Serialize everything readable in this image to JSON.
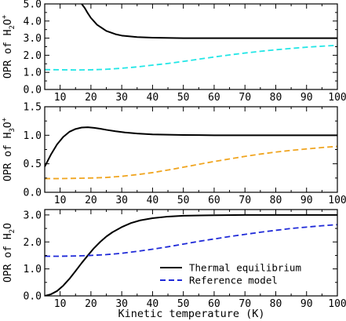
{
  "chart_data": [
    {
      "type": "line",
      "ylabel_main": "OPR of H",
      "ylabel_sub": "2",
      "ylabel_after": "O",
      "ylabel_sup": "+",
      "xlim": [
        5,
        100
      ],
      "ylim": [
        0,
        5
      ],
      "xticks": [
        10,
        20,
        30,
        40,
        50,
        60,
        70,
        80,
        90,
        100
      ],
      "yticks": [
        "0.0",
        "1.0",
        "2.0",
        "3.0",
        "4.0",
        "5.0"
      ],
      "series": [
        {
          "key": "thermal",
          "color": "#000000",
          "dash": "solid",
          "x": [
            17,
            18,
            19,
            20,
            22,
            25,
            28,
            30,
            35,
            40,
            50,
            60,
            70,
            80,
            90,
            100
          ],
          "y": [
            5.0,
            4.76,
            4.45,
            4.18,
            3.78,
            3.42,
            3.23,
            3.15,
            3.06,
            3.03,
            3.0,
            3.0,
            3.0,
            3.0,
            3.0,
            3.0
          ]
        },
        {
          "key": "reference",
          "color": "#22e6e6",
          "dash": "dashed",
          "x": [
            5,
            10,
            15,
            20,
            25,
            30,
            35,
            40,
            45,
            50,
            55,
            60,
            65,
            70,
            75,
            80,
            85,
            90,
            95,
            100
          ],
          "y": [
            1.16,
            1.15,
            1.14,
            1.15,
            1.18,
            1.24,
            1.32,
            1.42,
            1.52,
            1.64,
            1.77,
            1.9,
            2.02,
            2.13,
            2.23,
            2.32,
            2.4,
            2.47,
            2.53,
            2.58
          ]
        }
      ]
    },
    {
      "type": "line",
      "ylabel_main": "OPR of H",
      "ylabel_sub": "3",
      "ylabel_after": "O",
      "ylabel_sup": "+",
      "xlim": [
        5,
        100
      ],
      "ylim": [
        0,
        1.5
      ],
      "xticks": [
        10,
        20,
        30,
        40,
        50,
        60,
        70,
        80,
        90,
        100
      ],
      "yticks": [
        "0.0",
        "0.5",
        "1.0",
        "1.5"
      ],
      "series": [
        {
          "key": "thermal",
          "color": "#000000",
          "dash": "solid",
          "x": [
            5,
            7,
            9,
            11,
            13,
            15,
            17,
            19,
            21,
            23,
            25,
            28,
            31,
            35,
            40,
            50,
            60,
            70,
            80,
            90,
            100
          ],
          "y": [
            0.45,
            0.66,
            0.84,
            0.97,
            1.06,
            1.11,
            1.135,
            1.14,
            1.13,
            1.115,
            1.095,
            1.07,
            1.05,
            1.03,
            1.015,
            1.005,
            1.0,
            1.0,
            1.0,
            1.0,
            1.0
          ]
        },
        {
          "key": "reference",
          "color": "#f0a520",
          "dash": "dashed",
          "x": [
            5,
            10,
            15,
            20,
            25,
            30,
            35,
            40,
            45,
            50,
            55,
            60,
            65,
            70,
            75,
            80,
            85,
            90,
            95,
            100
          ],
          "y": [
            0.24,
            0.24,
            0.245,
            0.25,
            0.26,
            0.28,
            0.31,
            0.345,
            0.39,
            0.44,
            0.49,
            0.54,
            0.585,
            0.63,
            0.67,
            0.705,
            0.735,
            0.76,
            0.785,
            0.805
          ]
        }
      ]
    },
    {
      "type": "line",
      "ylabel_main": "OPR of H",
      "ylabel_sub": "2",
      "ylabel_after": "O",
      "ylabel_sup": "",
      "xlabel": "Kinetic temperature (K)",
      "xlim": [
        5,
        100
      ],
      "ylim": [
        0,
        3.2
      ],
      "xticks": [
        10,
        20,
        30,
        40,
        50,
        60,
        70,
        80,
        90,
        100
      ],
      "yticks": [
        "0.0",
        "1.0",
        "2.0",
        "3.0"
      ],
      "legend": {
        "position": "lower-right",
        "entries": [
          {
            "key": "thermal",
            "label": "Thermal equilibrium",
            "color": "#000000",
            "dash": "solid"
          },
          {
            "key": "reference",
            "label": "Reference model",
            "color": "#1f2ad8",
            "dash": "dashed"
          }
        ]
      },
      "series": [
        {
          "key": "thermal",
          "color": "#000000",
          "dash": "solid",
          "x": [
            5,
            7,
            9,
            11,
            13,
            15,
            17,
            19,
            21,
            23,
            25,
            27,
            30,
            33,
            36,
            40,
            45,
            50,
            60,
            70,
            80,
            90,
            100
          ],
          "y": [
            0.0,
            0.06,
            0.18,
            0.38,
            0.63,
            0.92,
            1.22,
            1.5,
            1.77,
            2.0,
            2.2,
            2.36,
            2.55,
            2.7,
            2.8,
            2.88,
            2.94,
            2.97,
            2.99,
            3.0,
            3.0,
            3.0,
            3.0
          ]
        },
        {
          "key": "reference",
          "color": "#1f2ad8",
          "dash": "dashed",
          "x": [
            5,
            10,
            15,
            20,
            25,
            30,
            35,
            40,
            45,
            50,
            55,
            60,
            65,
            70,
            75,
            80,
            85,
            90,
            95,
            100
          ],
          "y": [
            1.47,
            1.47,
            1.48,
            1.5,
            1.53,
            1.58,
            1.65,
            1.73,
            1.82,
            1.92,
            2.02,
            2.11,
            2.2,
            2.28,
            2.36,
            2.43,
            2.5,
            2.55,
            2.6,
            2.64
          ]
        }
      ]
    }
  ]
}
